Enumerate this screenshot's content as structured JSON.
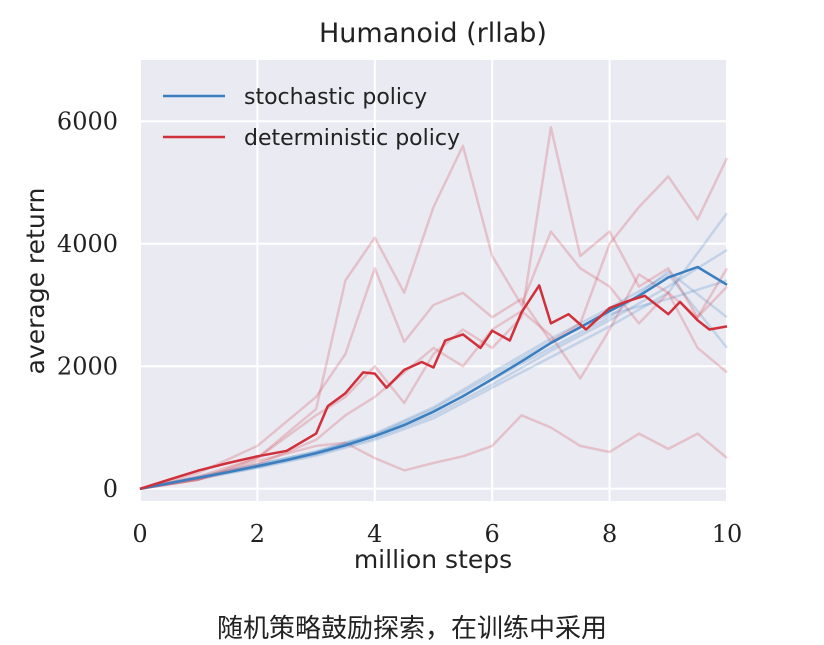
{
  "chart_data": {
    "type": "line",
    "title": "Humanoid (rllab)",
    "xlabel": "million steps",
    "ylabel": "average return",
    "xlim": [
      0,
      10
    ],
    "ylim": [
      -200,
      7000
    ],
    "xticks": [
      0,
      2,
      4,
      6,
      8,
      10
    ],
    "yticks": [
      0,
      2000,
      4000,
      6000
    ],
    "grid": true,
    "legend_position": "top-left",
    "series": [
      {
        "name": "stochastic policy",
        "color": "#3a7ebf",
        "x": [
          0,
          0.5,
          1,
          1.5,
          2,
          2.5,
          3,
          3.5,
          4,
          4.5,
          5,
          5.5,
          6,
          6.5,
          7,
          7.5,
          8,
          8.5,
          9,
          9.5,
          10
        ],
        "y": [
          0,
          90,
          180,
          270,
          370,
          470,
          580,
          710,
          860,
          1040,
          1260,
          1510,
          1790,
          2080,
          2380,
          2640,
          2900,
          3150,
          3450,
          3620,
          3330
        ]
      },
      {
        "name": "deterministic policy",
        "color": "#d0303a",
        "x": [
          0,
          0.5,
          1,
          1.5,
          2,
          2.5,
          3,
          3.2,
          3.5,
          3.8,
          4,
          4.2,
          4.5,
          4.8,
          5,
          5.2,
          5.5,
          5.8,
          6,
          6.3,
          6.5,
          6.8,
          7,
          7.3,
          7.6,
          8,
          8.3,
          8.6,
          9,
          9.2,
          9.5,
          9.7,
          10
        ],
        "y": [
          0,
          150,
          300,
          420,
          530,
          620,
          900,
          1350,
          1560,
          1900,
          1880,
          1650,
          1940,
          2070,
          1980,
          2420,
          2520,
          2300,
          2580,
          2420,
          2880,
          3320,
          2700,
          2850,
          2600,
          2950,
          3060,
          3150,
          2850,
          3050,
          2750,
          2600,
          2650
        ]
      }
    ],
    "individual_runs": [
      {
        "series": "stochastic policy",
        "color": "#3a7ebf",
        "x": [
          0,
          1,
          2,
          3,
          4,
          5,
          6,
          7,
          8,
          9,
          10
        ],
        "runs": [
          [
            0,
            170,
            350,
            560,
            830,
            1200,
            1700,
            2250,
            2750,
            3300,
            3900
          ],
          [
            0,
            190,
            390,
            610,
            900,
            1330,
            1900,
            2450,
            2950,
            3500,
            2300
          ],
          [
            0,
            160,
            340,
            540,
            800,
            1150,
            1650,
            2150,
            2650,
            3200,
            4500
          ],
          [
            0,
            180,
            360,
            590,
            880,
            1300,
            1850,
            2400,
            2850,
            3100,
            3400
          ],
          [
            0,
            200,
            400,
            600,
            870,
            1250,
            1780,
            2300,
            2800,
            3550,
            2800
          ]
        ]
      },
      {
        "series": "deterministic policy",
        "color": "#d0303a",
        "x": [
          0,
          1,
          2,
          3,
          3.5,
          4,
          4.5,
          5,
          5.5,
          6,
          6.5,
          7,
          7.5,
          8,
          8.5,
          9,
          9.5,
          10
        ],
        "runs": [
          [
            0,
            200,
            500,
            1300,
            3400,
            4100,
            3200,
            4600,
            5600,
            3800,
            3000,
            4200,
            3600,
            3300,
            2700,
            3200,
            2300,
            1900
          ],
          [
            0,
            150,
            500,
            1200,
            1500,
            2000,
            1400,
            2200,
            2600,
            2300,
            2800,
            5900,
            3800,
            4200,
            3300,
            3600,
            2800,
            3300
          ],
          [
            0,
            260,
            700,
            1500,
            2200,
            3600,
            2400,
            3000,
            3200,
            2800,
            3100,
            2400,
            2700,
            4000,
            4600,
            5100,
            4400,
            5400
          ],
          [
            0,
            150,
            450,
            700,
            750,
            500,
            300,
            420,
            530,
            700,
            1200,
            1000,
            700,
            600,
            900,
            650,
            900,
            500
          ],
          [
            0,
            150,
            400,
            800,
            1200,
            1500,
            1900,
            2300,
            2000,
            2600,
            2900,
            2500,
            1800,
            2600,
            3500,
            3200,
            2800,
            3600
          ]
        ]
      }
    ]
  },
  "caption": "随机策略鼓励探索，在训练中采用"
}
